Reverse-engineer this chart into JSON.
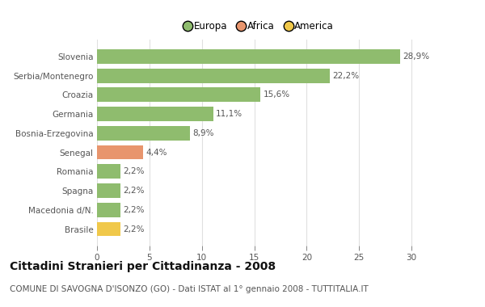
{
  "categories": [
    "Brasile",
    "Macedonia d/N.",
    "Spagna",
    "Romania",
    "Senegal",
    "Bosnia-Erzegovina",
    "Germania",
    "Croazia",
    "Serbia/Montenegro",
    "Slovenia"
  ],
  "values": [
    2.2,
    2.2,
    2.2,
    2.2,
    4.4,
    8.9,
    11.1,
    15.6,
    22.2,
    28.9
  ],
  "labels": [
    "2,2%",
    "2,2%",
    "2,2%",
    "2,2%",
    "4,4%",
    "8,9%",
    "11,1%",
    "15,6%",
    "22,2%",
    "28,9%"
  ],
  "colors": [
    "#f0c84a",
    "#8fbc6e",
    "#8fbc6e",
    "#8fbc6e",
    "#e8956d",
    "#8fbc6e",
    "#8fbc6e",
    "#8fbc6e",
    "#8fbc6e",
    "#8fbc6e"
  ],
  "legend_labels": [
    "Europa",
    "Africa",
    "America"
  ],
  "legend_colors": [
    "#8fbc6e",
    "#e8956d",
    "#f0c84a"
  ],
  "title": "Cittadini Stranieri per Cittadinanza - 2008",
  "subtitle": "COMUNE DI SAVOGNA D'ISONZO (GO) - Dati ISTAT al 1° gennaio 2008 - TUTTITALIA.IT",
  "xlim": [
    0,
    31
  ],
  "xticks": [
    0,
    5,
    10,
    15,
    20,
    25,
    30
  ],
  "background_color": "#ffffff",
  "grid_color": "#e0e0e0",
  "bar_height": 0.75,
  "title_fontsize": 10,
  "subtitle_fontsize": 7.5,
  "label_fontsize": 7.5,
  "tick_fontsize": 7.5,
  "legend_fontsize": 8.5,
  "ylabel_color": "#555555",
  "text_color": "#555555"
}
